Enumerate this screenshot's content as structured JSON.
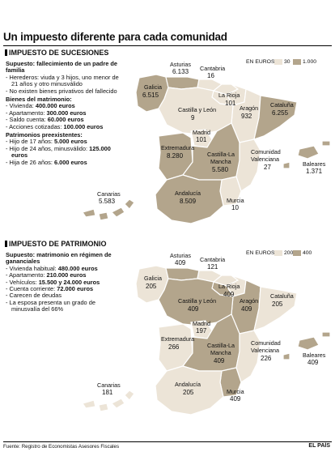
{
  "title": "Un impuesto diferente para cada comunidad",
  "colors": {
    "light": "#ece4d7",
    "dark": "#b3a58c",
    "white": "#ffffff",
    "border": "#ffffff"
  },
  "sucesiones": {
    "heading": "IMPUESTO DE SUCESIONES",
    "supuesto": "Supuesto: fallecimiento de un padre de familia",
    "items": [
      {
        "text": "Herederos: viuda y 3 hijos, uno menor de 21 años y otro minusválido"
      },
      {
        "text": "No existen bienes privativos del fallecido"
      }
    ],
    "bienes_head": "Bienes del matrimonio:",
    "bienes": [
      {
        "label": "Vivienda:",
        "value": "400.000 euros"
      },
      {
        "label": "Apartamento:",
        "value": "300.000 euros"
      },
      {
        "label": "Saldo cuenta:",
        "value": "60.000 euros"
      },
      {
        "label": "Acciones cotizadas:",
        "value": "100.000 euros"
      }
    ],
    "patrimonios_head": "Patrimonios preexistentes:",
    "patrimonios": [
      {
        "label": "Hijo de 17 años:",
        "value": "5.000 euros"
      },
      {
        "label": "Hijo de 24 años, minusválido:",
        "value": "125.000 euros"
      },
      {
        "label": "Hija de 26 años:",
        "value": "6.000 euros"
      }
    ],
    "legend": {
      "title": "EN EUROS",
      "low": "30",
      "high": "1.000"
    },
    "regions": {
      "galicia": {
        "name": "Galicia",
        "value": "6.515"
      },
      "asturias": {
        "name": "Asturias",
        "value": "6.133"
      },
      "cantabria": {
        "name": "Cantabria",
        "value": "16"
      },
      "rioja": {
        "name": "La Rioja",
        "value": "101"
      },
      "aragon": {
        "name": "Aragón",
        "value": "932"
      },
      "cataluna": {
        "name": "Cataluña",
        "value": "6.255"
      },
      "castilla_leon": {
        "name": "Castilla y León",
        "value": "9"
      },
      "madrid": {
        "name": "Madrid",
        "value": "101"
      },
      "extremadura": {
        "name": "Extremadura",
        "value": "8.280"
      },
      "castilla_mancha": {
        "name": "Castilla-La Mancha",
        "value": "5.580"
      },
      "valencia": {
        "name": "Comunidad Valenciana",
        "value": "27"
      },
      "baleares": {
        "name": "Baleares",
        "value": "1.371"
      },
      "andalucia": {
        "name": "Andalucía",
        "value": "8.509"
      },
      "murcia": {
        "name": "Murcia",
        "value": "10"
      },
      "canarias": {
        "name": "Canarias",
        "value": "5.583"
      }
    }
  },
  "patrimonio": {
    "heading": "IMPUESTO DE PATRIMONIO",
    "supuesto": "Supuesto: matrimonio en régimen de gananciales",
    "items": [
      {
        "label": "Vivienda habitual:",
        "value": "480.000 euros"
      },
      {
        "label": "Apartamento:",
        "value": "210.000 euros"
      },
      {
        "label": "Vehículos:",
        "value": "15.500 y 24.000 euros"
      },
      {
        "label": "Cuenta corriente:",
        "value": "72.000 euros"
      },
      {
        "label": "Carecen de deudas",
        "value": ""
      },
      {
        "label": "La esposa presenta un grado de minusvalía del 66%",
        "value": ""
      }
    ],
    "legend": {
      "title": "EN EUROS",
      "low": "200",
      "high": "400"
    },
    "regions": {
      "galicia": {
        "name": "Galicia",
        "value": "205"
      },
      "asturias": {
        "name": "Asturias",
        "value": "409"
      },
      "cantabria": {
        "name": "Cantabria",
        "value": "121"
      },
      "rioja": {
        "name": "La Rioja",
        "value": "409"
      },
      "aragon": {
        "name": "Aragón",
        "value": "409"
      },
      "cataluna": {
        "name": "Cataluña",
        "value": "205"
      },
      "castilla_leon": {
        "name": "Castilla y León",
        "value": "409"
      },
      "madrid": {
        "name": "Madrid",
        "value": "197"
      },
      "extremadura": {
        "name": "Extremadura",
        "value": "266"
      },
      "castilla_mancha": {
        "name": "Castilla-La Mancha",
        "value": "409"
      },
      "valencia": {
        "name": "Comunidad Valenciana",
        "value": "226"
      },
      "baleares": {
        "name": "Baleares",
        "value": "409"
      },
      "andalucia": {
        "name": "Andalucía",
        "value": "205"
      },
      "murcia": {
        "name": "Murcia",
        "value": "409"
      },
      "canarias": {
        "name": "Canarias",
        "value": "181"
      }
    }
  },
  "footer": {
    "source": "Fuente: Registro de Economistas Asesores Fiscales",
    "brand": "EL PAÍS"
  }
}
